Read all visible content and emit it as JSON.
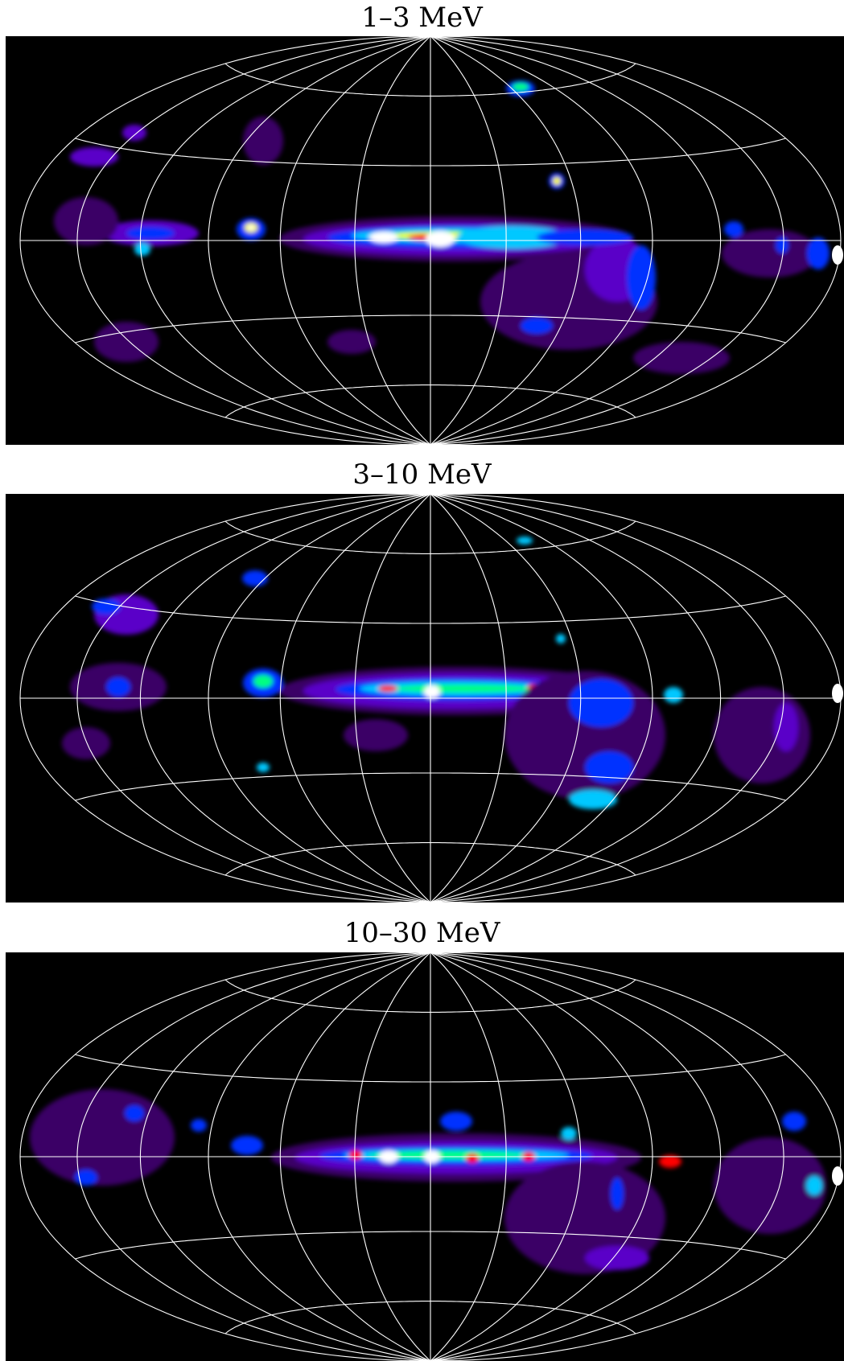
{
  "panels": [
    {
      "title": "1–3 MeV"
    },
    {
      "title": "3–10 MeV"
    },
    {
      "title": "10–30 MeV"
    }
  ],
  "colors": {
    "background": "#000000",
    "grid": "#ffffff",
    "colormap": [
      "#3a0066",
      "#5a00c8",
      "#0032ff",
      "#00c8ff",
      "#00ff80",
      "#ffff00",
      "#ff0000",
      "#ffffff"
    ]
  },
  "map": {
    "projection": "aitoff / hammer (galactic coordinates)",
    "grid_latitudes_deg": [
      -60,
      -30,
      0,
      30,
      60
    ],
    "grid_longitudes_deg": [
      -180,
      -150,
      -120,
      -90,
      -60,
      -30,
      0,
      30,
      60,
      90,
      120,
      150,
      180
    ]
  }
}
